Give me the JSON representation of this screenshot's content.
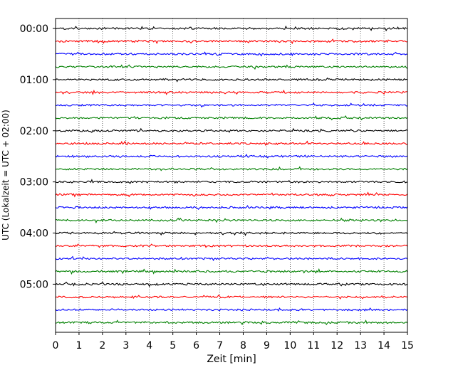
{
  "chart_data": {
    "type": "line",
    "title": "",
    "xlabel": "Zeit  [min]",
    "ylabel": "UTC (Lokalzeit = UTC + 02:00)",
    "xlim": [
      0,
      15
    ],
    "x_ticks": [
      0,
      1,
      2,
      3,
      4,
      5,
      6,
      7,
      8,
      9,
      10,
      11,
      12,
      13,
      14,
      15
    ],
    "x_tick_labels": [
      "0",
      "1",
      "2",
      "3",
      "4",
      "5",
      "6",
      "7",
      "8",
      "9",
      "10",
      "11",
      "12",
      "13",
      "14",
      "15"
    ],
    "y_ticks": [
      "00:00",
      "01:00",
      "02:00",
      "03:00",
      "04:00",
      "05:00"
    ],
    "traces_per_hour": 4,
    "trace_minutes": 15,
    "trace_colors": [
      "#000000",
      "#ff0000",
      "#0000ff",
      "#008000"
    ],
    "traces": [
      "00:00",
      "00:15",
      "00:30",
      "00:45",
      "01:00",
      "01:15",
      "01:30",
      "01:45",
      "02:00",
      "02:15",
      "02:30",
      "02:45",
      "03:00",
      "03:15",
      "03:30",
      "03:45",
      "04:00",
      "04:15",
      "04:30",
      "04:45",
      "05:00",
      "05:15",
      "05:30",
      "05:45"
    ],
    "grid": "vertical dotted",
    "legend": "none"
  }
}
